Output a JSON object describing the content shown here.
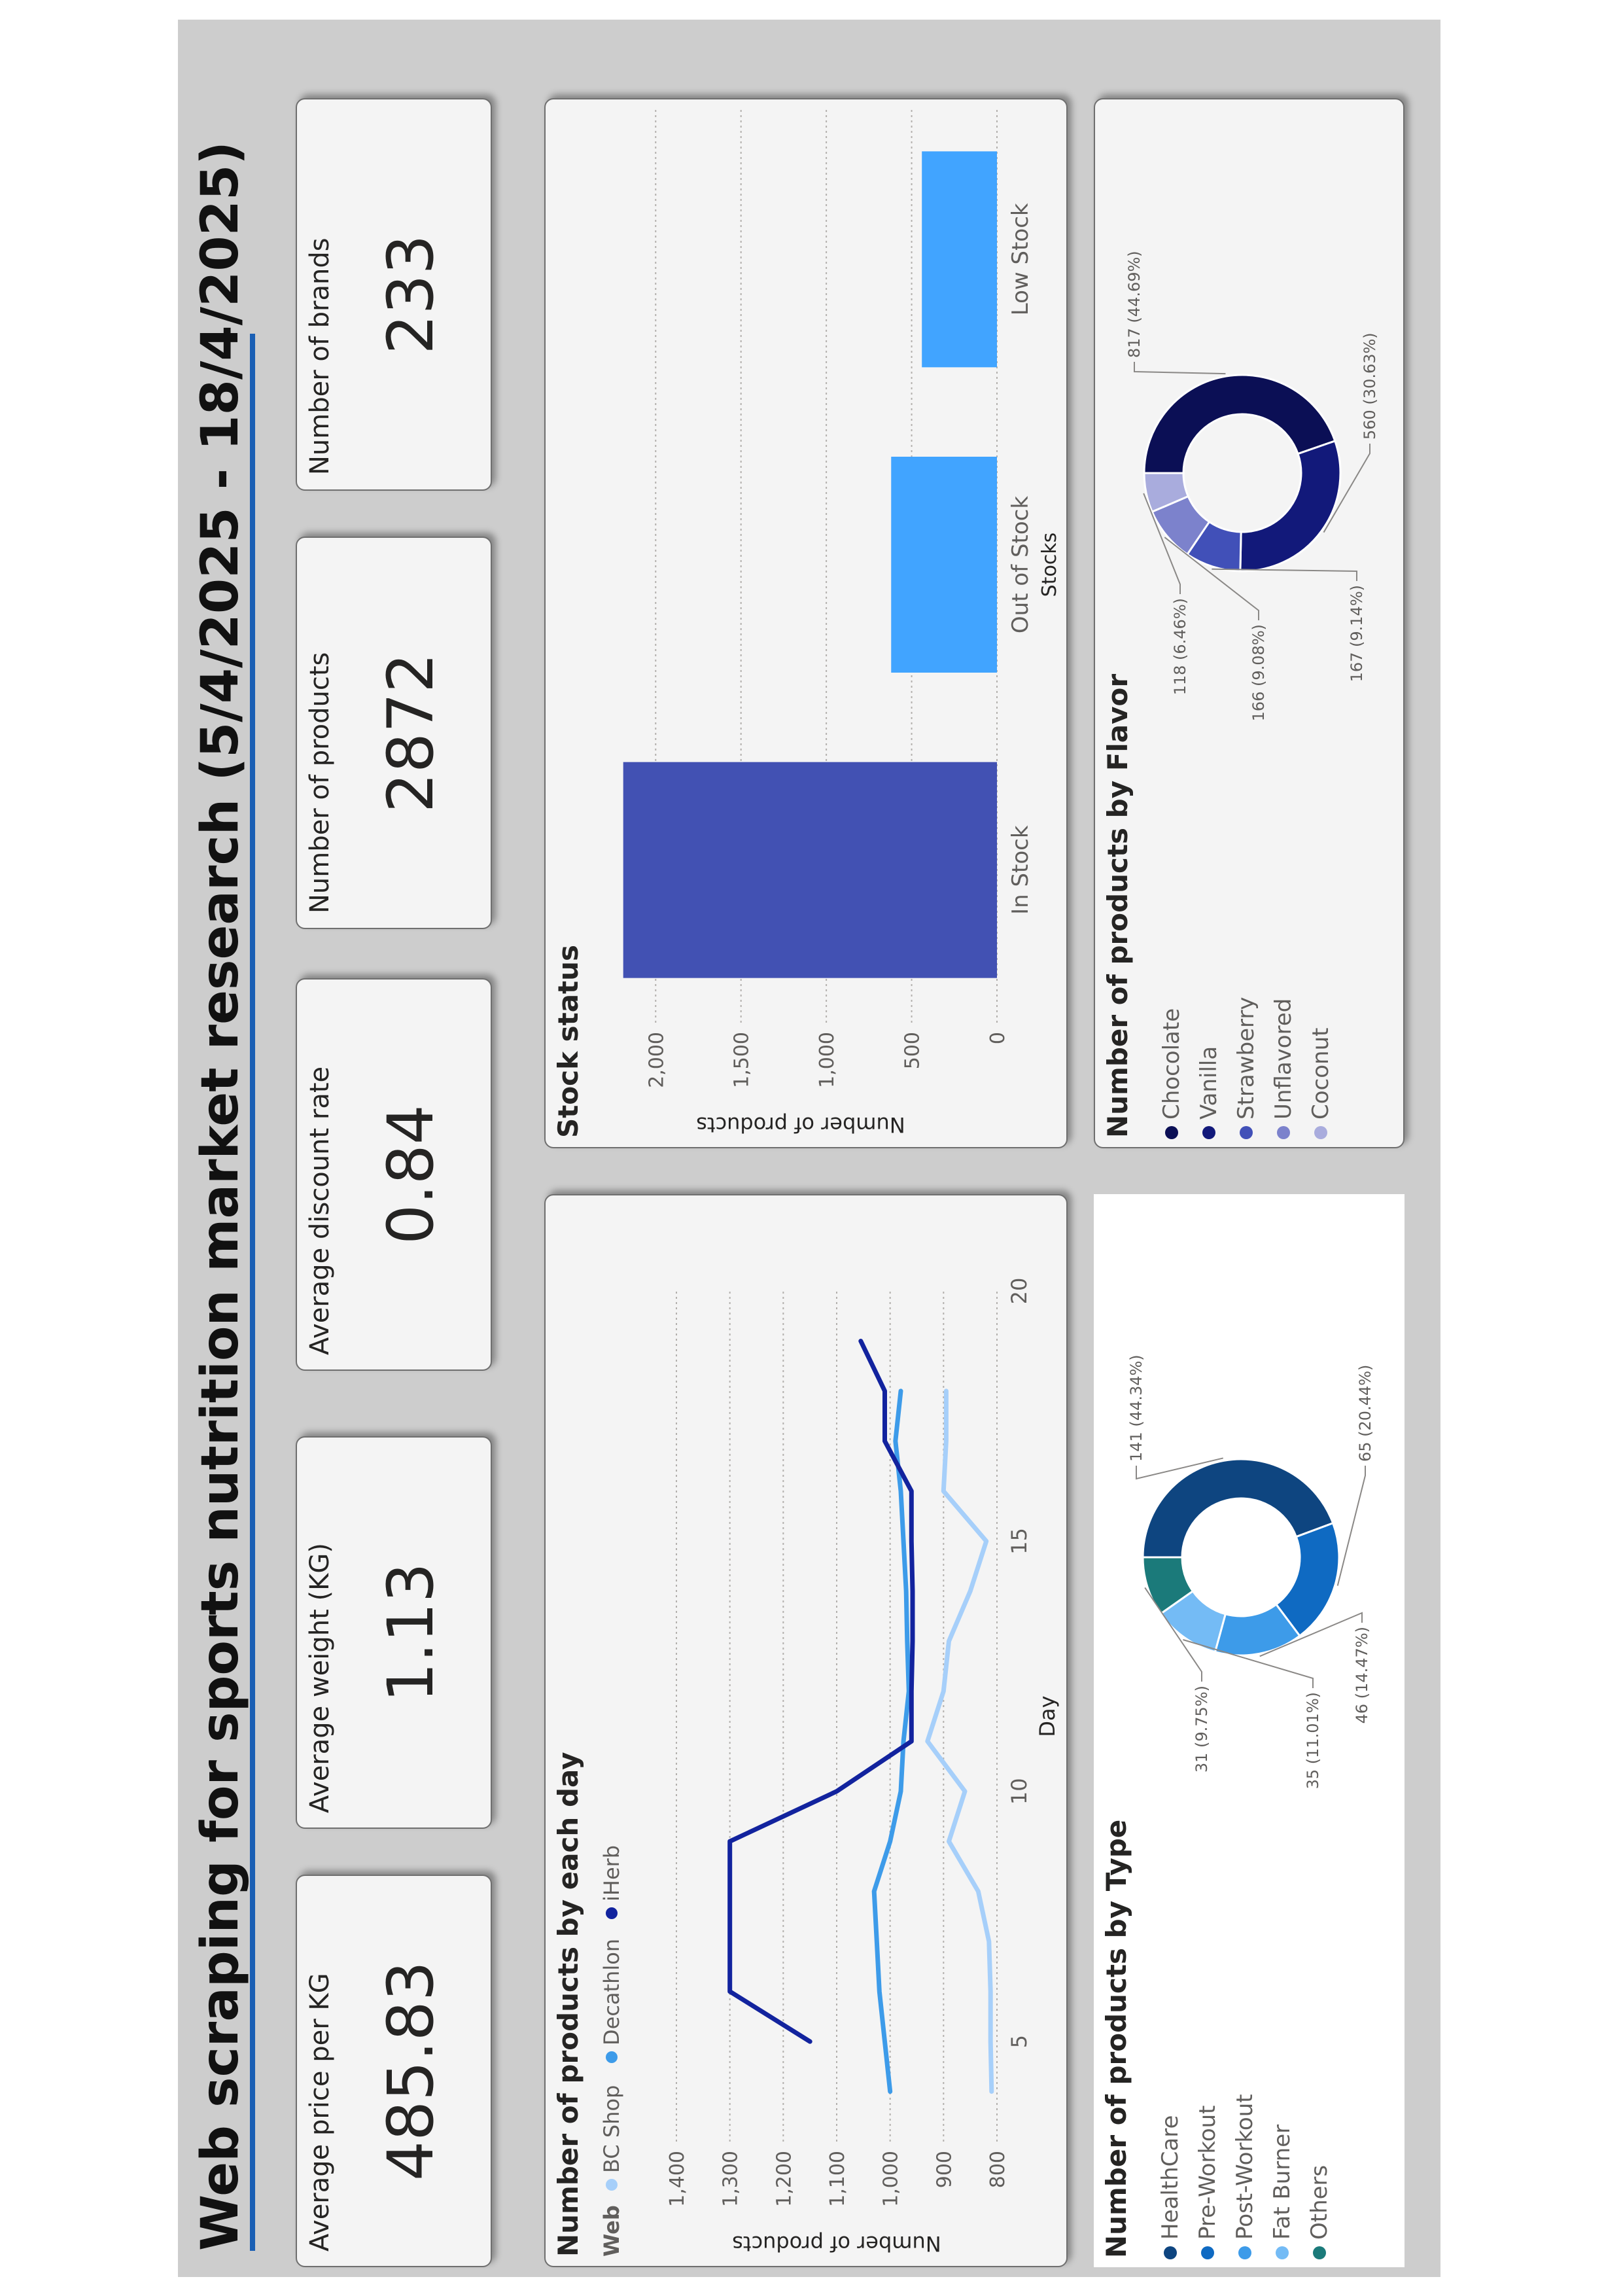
{
  "title": "Web scraping for sports nutrition market research (5/4/2025 - 18/4/2025)",
  "colors": {
    "bc_shop": "#a6cffa",
    "decathlon": "#3d9be9",
    "iherb": "#12239e",
    "in_stock_bar": "#4251b3",
    "other_stock_bar": "#41a4ff"
  },
  "kpis": [
    {
      "label": "Average price per KG",
      "value": "485.83"
    },
    {
      "label": "Average weight (KG)",
      "value": "1.13"
    },
    {
      "label": "Average discount rate",
      "value": "0.84"
    },
    {
      "label": "Number of products",
      "value": "2872"
    },
    {
      "label": "Number of brands",
      "value": "233"
    }
  ],
  "chart_data": [
    {
      "type": "line",
      "title": "Number of products by each day",
      "legend_title": "Web",
      "legend_position": "top-left",
      "xlabel": "Day",
      "ylabel": "Number of products",
      "xlim": [
        3,
        20
      ],
      "ylim": [
        800,
        1400
      ],
      "x_ticks": [
        "5",
        "10",
        "15",
        "20"
      ],
      "y_ticks": [
        "800",
        "900",
        "1,000",
        "1,100",
        "1,200",
        "1,300",
        "1,400"
      ],
      "grid": true,
      "series": [
        {
          "name": "BC Shop",
          "x": [
            4,
            5,
            6,
            7,
            8,
            9,
            10,
            11,
            12,
            13,
            14,
            15,
            16,
            17,
            18
          ],
          "y": [
            810,
            812,
            812,
            815,
            835,
            890,
            860,
            930,
            900,
            890,
            850,
            820,
            900,
            895,
            895
          ]
        },
        {
          "name": "Decathlon",
          "x": [
            4,
            5,
            6,
            7,
            8,
            9,
            10,
            11,
            12,
            13,
            14,
            15,
            16,
            17,
            18
          ],
          "y": [
            1000,
            1010,
            1020,
            1025,
            1030,
            1000,
            980,
            975,
            965,
            968,
            970,
            975,
            980,
            990,
            980
          ]
        },
        {
          "name": "iHerb",
          "x": [
            5,
            6,
            7,
            8,
            9,
            10,
            11,
            12,
            13,
            14,
            15,
            16,
            17,
            18,
            19
          ],
          "y": [
            1150,
            1300,
            1300,
            1300,
            1300,
            1100,
            960,
            960,
            958,
            958,
            960,
            960,
            1010,
            1010,
            1055
          ]
        }
      ]
    },
    {
      "type": "bar",
      "title": "Stock status",
      "xlabel": "Stocks",
      "ylabel": "Number of products",
      "categories": [
        "In Stock",
        "Out of Stock",
        "Low Stock"
      ],
      "values": [
        2190,
        620,
        440
      ],
      "y_ticks": [
        "0",
        "500",
        "1,000",
        "1,500",
        "2,000"
      ],
      "ylim": [
        0,
        2300
      ],
      "grid": true
    },
    {
      "type": "pie",
      "title": "Number of products by Type",
      "legend_position": "left",
      "labels": [
        "HealthCare",
        "Pre-Workout",
        "Post-Workout",
        "Fat Burner",
        "Others"
      ],
      "values": [
        141,
        65,
        46,
        35,
        31
      ],
      "data_labels": [
        "141 (44.34%)",
        "65 (20.44%)",
        "46 (14.47%)",
        "35 (11.01%)",
        "31 (9.75%)"
      ],
      "colors": [
        "#0e4580",
        "#0f6ac2",
        "#3d9be9",
        "#74bbf5",
        "#1b7a7a"
      ]
    },
    {
      "type": "pie",
      "title": "Number of products by Flavor",
      "legend_position": "left",
      "labels": [
        "Chocolate",
        "Vanilla",
        "Strawberry",
        "Unflavored",
        "Coconut"
      ],
      "values": [
        817,
        560,
        167,
        166,
        118
      ],
      "data_labels": [
        "817 (44.69%)",
        "560 (30.63%)",
        "167 (9.14%)",
        "166 (9.08%)",
        "118 (6.46%)"
      ],
      "colors": [
        "#0b0f55",
        "#12197a",
        "#4150b8",
        "#7c82cc",
        "#a9acdd"
      ]
    }
  ]
}
